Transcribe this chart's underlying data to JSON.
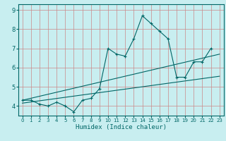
{
  "xlabel": "Humidex (Indice chaleur)",
  "background_color": "#c8eef0",
  "grid_color": "#cc8888",
  "line_color": "#006666",
  "x_data": [
    0,
    1,
    2,
    3,
    4,
    5,
    6,
    7,
    8,
    9,
    10,
    11,
    12,
    13,
    14,
    15,
    16,
    17,
    18,
    19,
    20,
    21,
    22,
    23
  ],
  "y_main": [
    4.3,
    4.3,
    4.1,
    4.0,
    4.2,
    4.0,
    3.7,
    4.3,
    4.4,
    4.9,
    7.0,
    6.7,
    6.6,
    7.5,
    8.7,
    8.3,
    7.9,
    7.5,
    5.5,
    5.5,
    6.3,
    6.3,
    7.0,
    null
  ],
  "trend1": [
    4.3,
    6.7
  ],
  "trend2": [
    4.15,
    5.55
  ],
  "trend_x": [
    0,
    23
  ],
  "xlim": [
    -0.5,
    23.5
  ],
  "ylim": [
    3.5,
    9.3
  ],
  "yticks": [
    4,
    5,
    6,
    7,
    8,
    9
  ],
  "xticks": [
    0,
    1,
    2,
    3,
    4,
    5,
    6,
    7,
    8,
    9,
    10,
    11,
    12,
    13,
    14,
    15,
    16,
    17,
    18,
    19,
    20,
    21,
    22,
    23
  ]
}
